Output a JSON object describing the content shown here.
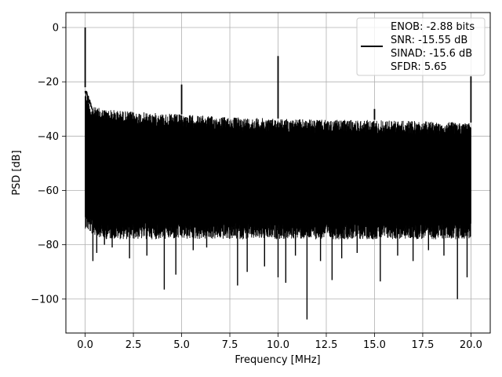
{
  "chart_data": {
    "type": "line",
    "xlabel": "Frequency [MHz]",
    "ylabel": "PSD [dB]",
    "xlim": [
      -1.0,
      21.0
    ],
    "ylim": [
      -112.5,
      5.5
    ],
    "xticks": [
      0.0,
      2.5,
      5.0,
      7.5,
      10.0,
      12.5,
      15.0,
      17.5,
      20.0
    ],
    "xtick_labels": [
      "0.0",
      "2.5",
      "5.0",
      "7.5",
      "10.0",
      "12.5",
      "15.0",
      "17.5",
      "20.0"
    ],
    "yticks": [
      0,
      -20,
      -40,
      -60,
      -80,
      -100
    ],
    "ytick_labels": [
      "0",
      "−20",
      "−40",
      "−60",
      "−80",
      "−100"
    ],
    "grid": true,
    "legend": {
      "placement": "top-right",
      "entries": [
        "ENOB: -2.88 bits",
        "SNR: -15.55 dB",
        "SINAD: -15.6 dB",
        "SFDR: 5.65"
      ]
    },
    "series": [
      {
        "color": "#000000",
        "noise_band": {
          "x": [
            0.0,
            0.3,
            1.0,
            2.5,
            5.0,
            7.5,
            10.0,
            12.5,
            15.0,
            17.5,
            20.0
          ],
          "y_upper": [
            -22,
            -29,
            -30,
            -31,
            -32,
            -33,
            -33.5,
            -34,
            -34,
            -34.5,
            -35
          ],
          "y_lower": [
            -68,
            -70,
            -72,
            -72,
            -72,
            -72,
            -72,
            -72,
            -72,
            -72,
            -72
          ]
        },
        "spikes": [
          {
            "x": 0.0,
            "y": 0.0
          },
          {
            "x": 5.0,
            "y": -21
          },
          {
            "x": 10.0,
            "y": -10.5
          },
          {
            "x": 15.0,
            "y": -30
          },
          {
            "x": 20.0,
            "y": -18
          }
        ],
        "dips": [
          {
            "x": 0.4,
            "y": -86
          },
          {
            "x": 0.6,
            "y": -83
          },
          {
            "x": 1.0,
            "y": -80
          },
          {
            "x": 1.4,
            "y": -81
          },
          {
            "x": 2.3,
            "y": -85
          },
          {
            "x": 3.2,
            "y": -84
          },
          {
            "x": 4.1,
            "y": -96.5
          },
          {
            "x": 4.7,
            "y": -91
          },
          {
            "x": 5.6,
            "y": -82
          },
          {
            "x": 6.3,
            "y": -81
          },
          {
            "x": 7.9,
            "y": -95
          },
          {
            "x": 8.4,
            "y": -90
          },
          {
            "x": 9.3,
            "y": -88
          },
          {
            "x": 10.0,
            "y": -92
          },
          {
            "x": 10.4,
            "y": -94
          },
          {
            "x": 10.9,
            "y": -84
          },
          {
            "x": 11.5,
            "y": -107.5
          },
          {
            "x": 12.2,
            "y": -86
          },
          {
            "x": 12.8,
            "y": -93
          },
          {
            "x": 13.3,
            "y": -85
          },
          {
            "x": 14.1,
            "y": -83
          },
          {
            "x": 15.3,
            "y": -93.5
          },
          {
            "x": 16.2,
            "y": -84
          },
          {
            "x": 17.0,
            "y": -86
          },
          {
            "x": 17.8,
            "y": -82
          },
          {
            "x": 18.6,
            "y": -84
          },
          {
            "x": 19.3,
            "y": -100
          },
          {
            "x": 19.8,
            "y": -92
          }
        ]
      }
    ]
  }
}
